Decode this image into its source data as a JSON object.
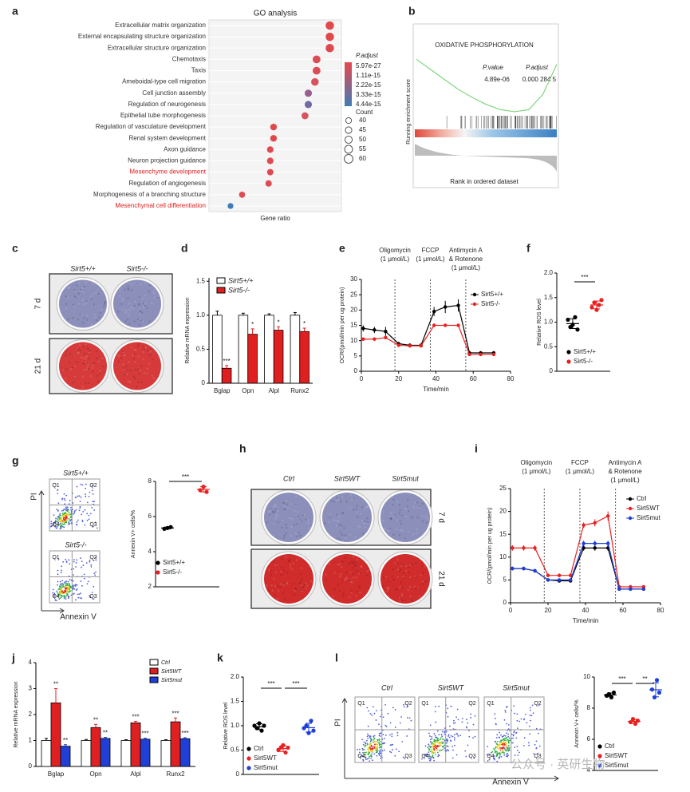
{
  "chart_data": [
    {
      "type": "dot",
      "label": "a",
      "title": "GO analysis",
      "xlabel": "Gene ratio",
      "categories": [
        "Extracellular matrix organization",
        "External encapsulating structure organization",
        "Extracellular structure organization",
        "Chemotaxis",
        "Taxis",
        "Ameboidal-type cell migration",
        "Cell junction assembly",
        "Regulation of neurogenesis",
        "Epithelial tube morphogenesis",
        "Regulation of vasculature development",
        "Renal system development",
        "Axon guidance",
        "Neuron projection guidance",
        "Mesenchyme development",
        "Regulation of angiogenesis",
        "Morphogenesis of a branching structure",
        "Mesenchymal cell differentiation"
      ],
      "category_colors": [
        "#333333",
        "#333333",
        "#333333",
        "#333333",
        "#333333",
        "#333333",
        "#333333",
        "#333333",
        "#333333",
        "#333333",
        "#333333",
        "#333333",
        "#333333",
        "#e02020",
        "#333333",
        "#333333",
        "#e02020"
      ],
      "values": [
        0.123,
        0.123,
        0.123,
        0.115,
        0.115,
        0.114,
        0.11,
        0.11,
        0.108,
        0.089,
        0.089,
        0.087,
        0.087,
        0.087,
        0.086,
        0.07,
        0.063
      ],
      "sizes": [
        58,
        58,
        58,
        54,
        54,
        52,
        50,
        50,
        48,
        46,
        46,
        45,
        45,
        44,
        44,
        42,
        40
      ],
      "colors": [
        "#e0484c",
        "#e0484c",
        "#df4a50",
        "#dd4c52",
        "#dc4e55",
        "#d9525a",
        "#9a5f8e",
        "#6f6aa6",
        "#d65560",
        "#e0484c",
        "#e0484c",
        "#df4a50",
        "#df4a50",
        "#df4a50",
        "#de4b52",
        "#dd4c54",
        "#3f7cb8"
      ],
      "xlim": [
        0.05,
        0.13
      ],
      "color_legend": {
        "title": "P.adjust",
        "labels": [
          "5.97e-27",
          "1.11e-15",
          "2.22e-15",
          "3.33e-15",
          "4.44e-15"
        ],
        "colors": [
          "#e8474c",
          "#3f7cb8"
        ]
      },
      "size_legend": {
        "title": "Count",
        "values": [
          40,
          45,
          50,
          55,
          60
        ]
      }
    },
    {
      "type": "gsea",
      "label": "b",
      "title": "OXIDATIVE PHOSPHORYLATION",
      "ylabel": "Running enrichment score",
      "xlabel": "Rank in ordered dataset",
      "stats": {
        "headers": [
          "P.value",
          "P.adjust"
        ],
        "values": [
          "4.89e-06",
          "0.000 284 5"
        ]
      },
      "values": [
        0,
        -0.1,
        -0.2,
        -0.3,
        -0.38,
        -0.45,
        -0.5,
        -0.52,
        -0.5,
        -0.35,
        -0.05
      ],
      "ylim": [
        -0.6,
        0.05
      ],
      "color": "#7ed67e"
    },
    {
      "type": "plates",
      "label": "c",
      "columns": [
        "Sirt5+/+",
        "Sirt5-/-"
      ],
      "rows": [
        "7 d",
        "21 d"
      ],
      "colors": [
        "#8c8fba",
        "#d63a3a"
      ]
    },
    {
      "type": "bar",
      "label": "d",
      "ylabel": "Relative mRNA expression",
      "categories": [
        "Bglap",
        "Opn",
        "Alpl",
        "Runx2"
      ],
      "series": [
        {
          "name": "Sirt5+/+",
          "color": "#ffffff",
          "values": [
            1,
            1,
            1,
            1
          ],
          "errors": [
            0.06,
            0.03,
            0.02,
            0.04
          ]
        },
        {
          "name": "Sirt5-/-",
          "color": "#e02020",
          "values": [
            0.22,
            0.72,
            0.78,
            0.76
          ],
          "errors": [
            0.04,
            0.08,
            0.05,
            0.05
          ],
          "annotations": [
            "***",
            "*",
            "*",
            "*"
          ]
        }
      ],
      "ylim": [
        0,
        1.55
      ],
      "yticks": [
        0,
        0.5,
        {
          "value": 1,
          "label": "1.0"
        },
        1.5
      ]
    },
    {
      "type": "line",
      "label": "e",
      "ylabel": "OCR/(pmol/min per ug protein)",
      "xlabel": "Time/min",
      "x": [
        1,
        7,
        13,
        20,
        26,
        32,
        39,
        45,
        52,
        58,
        64,
        71
      ],
      "series": [
        {
          "name": "Sirt5+/+",
          "color": "#000000",
          "values": [
            14,
            13.5,
            13,
            9,
            8.5,
            8.5,
            19.5,
            21,
            21.5,
            6,
            6,
            6
          ],
          "errors": [
            1,
            1,
            1.5,
            0.5,
            0.5,
            0.5,
            1.5,
            2,
            2,
            0.5,
            0.5,
            0.5
          ]
        },
        {
          "name": "Sirt5-/-",
          "color": "#e82020",
          "values": [
            10.5,
            10.5,
            11,
            8.5,
            8.3,
            8.3,
            15,
            15,
            15,
            5.5,
            5.5,
            5.5
          ],
          "errors": [
            0.5,
            0.5,
            0.5,
            0.4,
            0.4,
            0.4,
            0.5,
            0.5,
            0.5,
            0.3,
            0.3,
            0.3
          ]
        }
      ],
      "injections": [
        {
          "x": 18,
          "lines": [
            "Oligomycin",
            "(1 μmol/L)"
          ]
        },
        {
          "x": 37,
          "lines": [
            "FCCP",
            "(1 μmol/L)"
          ]
        },
        {
          "x": 56,
          "lines": [
            "Antimycin A",
            "& Rotenone",
            "(1 μmol/L)"
          ]
        }
      ],
      "xlim": [
        0,
        80
      ],
      "xticks": [
        0,
        20,
        40,
        60,
        80
      ],
      "ylim": [
        0,
        30
      ],
      "yticks": [
        0,
        5,
        10,
        15,
        20,
        25,
        30
      ]
    },
    {
      "type": "dotplot",
      "label": "f",
      "ylabel": "Relative ROS level",
      "series": [
        {
          "name": "Sirt5+/+",
          "color": "#000000",
          "values": [
            1.05,
            0.9,
            0.95,
            1.1,
            0.85
          ],
          "mean": 0.97,
          "sd": 0.1
        },
        {
          "name": "Sirt5-/-",
          "color": "#e82020",
          "values": [
            1.3,
            1.4,
            1.25,
            1.35,
            1.45
          ],
          "mean": 1.35,
          "sd": 0.08
        }
      ],
      "comparisons": [
        "***"
      ],
      "ylim": [
        0,
        2
      ],
      "yticks": [
        0,
        0.5,
        {
          "value": 1,
          "label": "1.0"
        },
        1.5,
        {
          "value": 2,
          "label": "2.0"
        }
      ]
    },
    {
      "type": "flow",
      "label": "g",
      "xlabel": "Annexin V",
      "ylabel": "PI",
      "panels": [
        {
          "title": "Sirt5+/+",
          "quadrants": [
            "Q1",
            "Q2",
            "Q3",
            "Q4"
          ]
        },
        {
          "title": "Sirt5-/-",
          "quadrants": [
            "Q1",
            "Q2",
            "Q3",
            "Q4"
          ]
        }
      ]
    },
    {
      "type": "dotplot",
      "ylabel": "Annexin V+ cells/%",
      "series": [
        {
          "name": "Sirt5+/+",
          "color": "#000000",
          "values": [
            5.3,
            5.35,
            5.4
          ],
          "mean": 5.35,
          "sd": 0.05
        },
        {
          "name": "Sirt5-/-",
          "color": "#e82020",
          "values": [
            7.5,
            7.7,
            7.4
          ],
          "mean": 7.55,
          "sd": 0.15
        }
      ],
      "comparisons": [
        "***"
      ],
      "ylim": [
        2,
        8
      ],
      "yticks": [
        2,
        4,
        6,
        8
      ]
    },
    {
      "type": "plates",
      "label": "h",
      "columns": [
        "Ctrl",
        "Sirt5WT",
        "Sirt5mut"
      ],
      "rows": [
        "7 d",
        "21 d"
      ],
      "colors": [
        "#8c8fba",
        "#d02c2c"
      ]
    },
    {
      "type": "line",
      "label": "i",
      "ylabel": "OCR/(pmol/min per ug protein)",
      "xlabel": "Time/min",
      "x": [
        1,
        7,
        13,
        20,
        26,
        32,
        39,
        45,
        52,
        58,
        64,
        71
      ],
      "series": [
        {
          "name": "Ctrl",
          "color": "#000000",
          "values": [
            7.5,
            7.5,
            7,
            5,
            4.8,
            4.8,
            12,
            12,
            12,
            3,
            3,
            3
          ],
          "errors": [
            0.4,
            0.4,
            0.4,
            0.3,
            0.3,
            0.3,
            0.6,
            0.6,
            0.6,
            0.3,
            0.3,
            0.3
          ]
        },
        {
          "name": "Sirt5WT",
          "color": "#e82020",
          "values": [
            12,
            12,
            12,
            6,
            6,
            6,
            17,
            17.5,
            19,
            3.5,
            3.5,
            3.5
          ],
          "errors": [
            0.6,
            0.6,
            0.6,
            0.4,
            0.4,
            0.4,
            0.6,
            0.8,
            1,
            0.3,
            0.3,
            0.3
          ]
        },
        {
          "name": "Sirt5mut",
          "color": "#1f3fd6",
          "values": [
            7.5,
            7.5,
            7,
            5,
            5,
            5,
            13,
            13,
            13,
            3,
            3,
            3
          ],
          "errors": [
            0.4,
            0.4,
            0.4,
            0.3,
            0.3,
            0.3,
            0.6,
            0.6,
            0.6,
            0.3,
            0.3,
            0.3
          ]
        }
      ],
      "injections": [
        {
          "x": 18,
          "lines": [
            "Oligomycin",
            "(1 μmol/L)"
          ]
        },
        {
          "x": 37,
          "lines": [
            "FCCP",
            "(1 μmol/L)"
          ]
        },
        {
          "x": 56,
          "lines": [
            "Antimycin A",
            "& Rotenone",
            "(1 μmol/L)"
          ]
        }
      ],
      "xlim": [
        0,
        80
      ],
      "xticks": [
        0,
        20,
        40,
        60,
        80
      ],
      "ylim": [
        0,
        25
      ],
      "yticks": [
        0,
        5,
        10,
        15,
        20,
        25
      ]
    },
    {
      "type": "bar",
      "label": "j",
      "ylabel": "Relative mRNA expression",
      "categories": [
        "Bglap",
        "Opn",
        "Alpl",
        "Runx2"
      ],
      "series": [
        {
          "name": "Ctrl",
          "color": "#ffffff",
          "values": [
            1,
            1,
            1,
            1
          ],
          "errors": [
            0.08,
            0.04,
            0.03,
            0.03
          ]
        },
        {
          "name": "Sirt5WT",
          "color": "#e02020",
          "values": [
            2.45,
            1.5,
            1.68,
            1.72
          ],
          "errors": [
            0.55,
            0.12,
            0.06,
            0.15
          ],
          "annotations": [
            "**",
            "**",
            "***",
            "***"
          ]
        },
        {
          "name": "Sirt5mut",
          "color": "#1f3fd6",
          "values": [
            0.78,
            1.08,
            1.05,
            1.07
          ],
          "errors": [
            0.06,
            0.04,
            0.04,
            0.04
          ],
          "annotations": [
            "**",
            "**",
            "***",
            "***"
          ]
        }
      ],
      "ylim": [
        0,
        4
      ],
      "yticks": [
        0,
        1,
        2,
        3,
        4
      ]
    },
    {
      "type": "dotplot",
      "label": "k",
      "ylabel": "Relative ROS level",
      "series": [
        {
          "name": "Ctrl",
          "color": "#000000",
          "values": [
            1,
            0.95,
            1.05,
            0.9,
            1.0
          ],
          "mean": 0.98,
          "sd": 0.06
        },
        {
          "name": "Sirt5WT",
          "color": "#e82020",
          "values": [
            0.5,
            0.55,
            0.6,
            0.45,
            0.55
          ],
          "mean": 0.53,
          "sd": 0.06
        },
        {
          "name": "Sirt5mut",
          "color": "#1f3fd6",
          "values": [
            0.95,
            1.0,
            0.85,
            1.1,
            0.9
          ],
          "mean": 0.96,
          "sd": 0.09
        }
      ],
      "comparisons": [
        "***",
        "***"
      ],
      "ylim": [
        0,
        2
      ],
      "yticks": [
        0,
        0.5,
        {
          "value": 1,
          "label": "1.0"
        },
        1.5,
        {
          "value": 2,
          "label": "2.0"
        }
      ]
    },
    {
      "type": "flow",
      "label": "l",
      "xlabel": "Annexin V",
      "ylabel": "PI",
      "panels": [
        {
          "title": "Ctrl",
          "quadrants": [
            "Q1",
            "Q2",
            "Q3",
            "Q4"
          ]
        },
        {
          "title": "Sirt5WT",
          "quadrants": [
            "Q1",
            "Q2",
            "Q3",
            "Q4"
          ]
        },
        {
          "title": "Sirt5mut",
          "quadrants": [
            "Q1",
            "Q2",
            "Q3",
            "Q4"
          ]
        }
      ]
    },
    {
      "type": "dotplot",
      "ylabel": "Annexin V+ cells/%",
      "series": [
        {
          "name": "Ctrl",
          "color": "#000000",
          "values": [
            8.8,
            8.9,
            8.7,
            9.0
          ],
          "mean": 8.85,
          "sd": 0.12
        },
        {
          "name": "Sirt5WT",
          "color": "#e82020",
          "values": [
            7.1,
            7.3,
            7.0,
            7.2
          ],
          "mean": 7.15,
          "sd": 0.13
        },
        {
          "name": "Sirt5mut",
          "color": "#1f3fd6",
          "values": [
            9.2,
            8.7,
            9.8,
            9.0
          ],
          "mean": 9.18,
          "sd": 0.45
        }
      ],
      "comparisons": [
        "***",
        "**"
      ],
      "ylim": [
        4,
        10
      ],
      "yticks": [
        4,
        6,
        8,
        10
      ]
    }
  ],
  "watermark": "公众号 · 英研生物"
}
